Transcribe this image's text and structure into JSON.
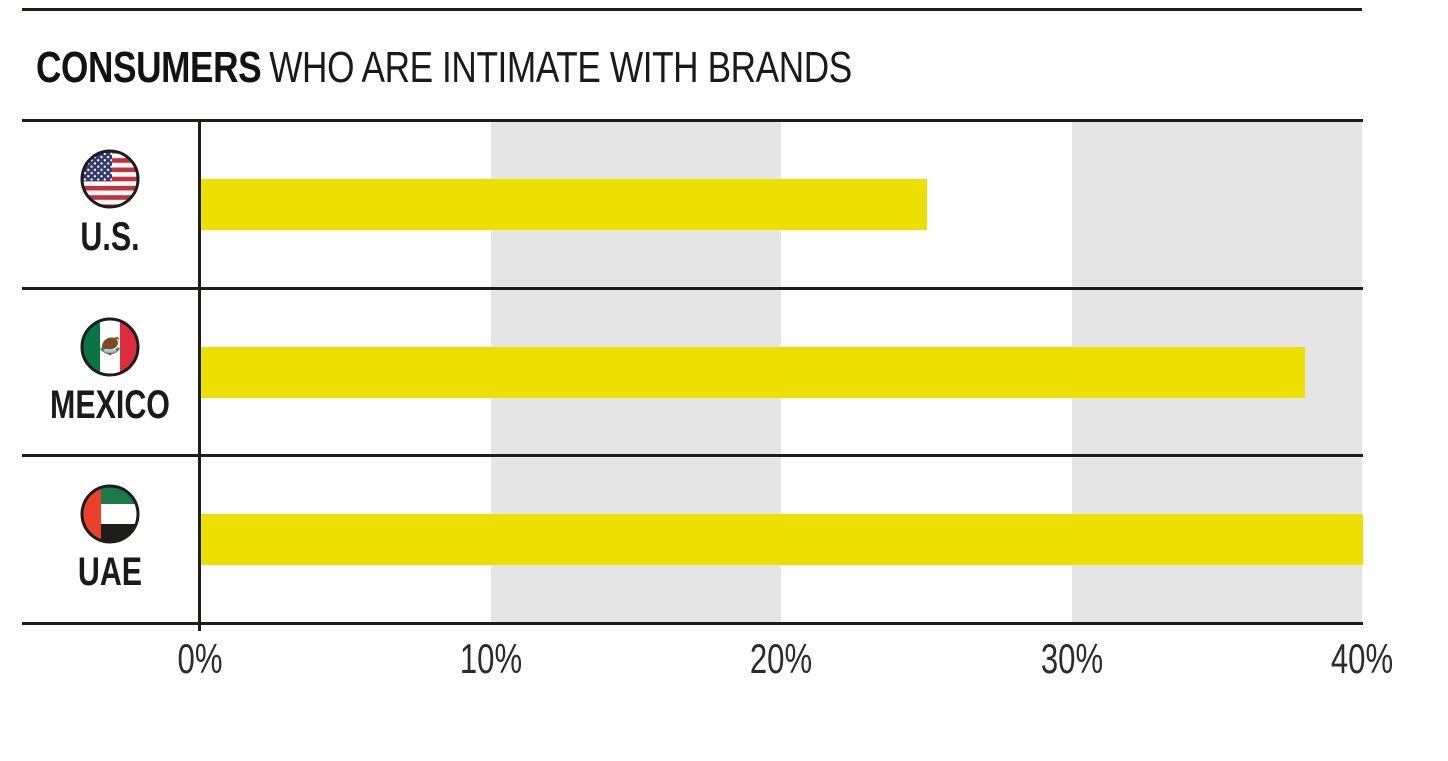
{
  "title": {
    "emphasis": "CONSUMERS",
    "rest": "WHO ARE INTIMATE WITH BRANDS"
  },
  "colors": {
    "bar": "#EDDF00",
    "band": "#E5E5E5",
    "line": "#1D1D1B"
  },
  "rows": [
    {
      "label": "U.S.",
      "value": 25,
      "flag_icon": "us-flag-icon"
    },
    {
      "label": "MEXICO",
      "value": 38,
      "flag_icon": "mexico-flag-icon"
    },
    {
      "label": "UAE",
      "value": 40,
      "flag_icon": "uae-flag-icon"
    }
  ],
  "axis": {
    "tick_labels": [
      "0%",
      "10%",
      "20%",
      "30%",
      "40%"
    ]
  },
  "chart_data": {
    "type": "bar",
    "orientation": "horizontal",
    "title": "CONSUMERS WHO ARE INTIMATE WITH BRANDS",
    "categories": [
      "U.S.",
      "MEXICO",
      "UAE"
    ],
    "values": [
      25,
      38,
      40
    ],
    "unit": "percent",
    "xlabel": "",
    "ylabel": "",
    "xlim": [
      0,
      40
    ],
    "xtick_values": [
      0,
      10,
      20,
      30,
      40
    ],
    "xtick_labels": [
      "0%",
      "10%",
      "20%",
      "30%",
      "40%"
    ],
    "shaded_bands": [
      [
        10,
        20
      ],
      [
        30,
        40
      ]
    ],
    "bar_color": "#EDDF00",
    "band_color": "#E5E5E5",
    "legend": "none",
    "grid": "alternating gray vertical bands instead of gridlines"
  }
}
